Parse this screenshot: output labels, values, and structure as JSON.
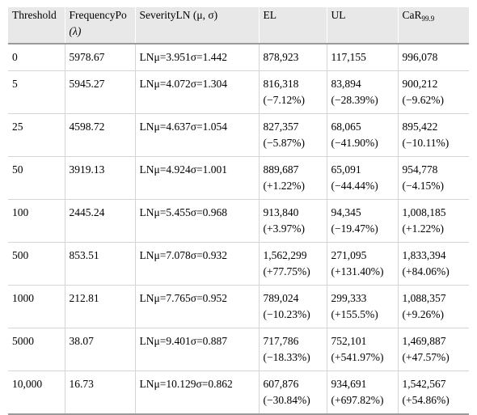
{
  "table": {
    "headers": {
      "threshold": "Threshold",
      "frequency_line1": "FrequencyPo",
      "frequency_line2": "(λ)",
      "severity": "SeverityLN (μ, σ)",
      "el": "EL",
      "ul": "UL",
      "car_main": "CaR",
      "car_sub": "99.9"
    },
    "rows": [
      {
        "threshold": "0",
        "frequency": "5978.67",
        "severity": "LNμ=3.951σ=1.442",
        "el": "878,923",
        "el_change": "",
        "ul": "117,155",
        "ul_change": "",
        "car": "996,078",
        "car_change": ""
      },
      {
        "threshold": "5",
        "frequency": "5945.27",
        "severity": "LNμ=4.072σ=1.304",
        "el": "816,318",
        "el_change": "(−7.12%)",
        "ul": "83,894",
        "ul_change": "(−28.39%)",
        "car": "900,212",
        "car_change": "(−9.62%)"
      },
      {
        "threshold": "25",
        "frequency": "4598.72",
        "severity": "LNμ=4.637σ=1.054",
        "el": "827,357",
        "el_change": "(−5.87%)",
        "ul": "68,065",
        "ul_change": "(−41.90%)",
        "car": "895,422",
        "car_change": "(−10.11%)"
      },
      {
        "threshold": "50",
        "frequency": "3919.13",
        "severity": "LNμ=4.924σ=1.001",
        "el": "889,687",
        "el_change": "(+1.22%)",
        "ul": "65,091",
        "ul_change": "(−44.44%)",
        "car": "954,778",
        "car_change": "(−4.15%)"
      },
      {
        "threshold": "100",
        "frequency": "2445.24",
        "severity": "LNμ=5.455σ=0.968",
        "el": "913,840",
        "el_change": "(+3.97%)",
        "ul": "94,345",
        "ul_change": "(−19.47%)",
        "car": "1,008,185",
        "car_change": "(+1.22%)"
      },
      {
        "threshold": "500",
        "frequency": "853.51",
        "severity": "LNμ=7.078σ=0.932",
        "el": "1,562,299",
        "el_change": "(+77.75%)",
        "ul": "271,095",
        "ul_change": "(+131.40%)",
        "car": "1,833,394",
        "car_change": "(+84.06%)"
      },
      {
        "threshold": "1000",
        "frequency": "212.81",
        "severity": "LNμ=7.765σ=0.952",
        "el": "789,024",
        "el_change": "(−10.23%)",
        "ul": "299,333",
        "ul_change": "(+155.5%)",
        "car": "1,088,357",
        "car_change": "(+9.26%)"
      },
      {
        "threshold": "5000",
        "frequency": "38.07",
        "severity": "LNμ=9.401σ=0.887",
        "el": "717,786",
        "el_change": "(−18.33%)",
        "ul": "752,101",
        "ul_change": "(+541.97%)",
        "car": "1,469,887",
        "car_change": "(+47.57%)"
      },
      {
        "threshold": "10,000",
        "frequency": "16.73",
        "severity": "LNμ=10.129σ=0.862",
        "el": "607,876",
        "el_change": "(−30.84%)",
        "ul": "934,691",
        "ul_change": "(+697.82%)",
        "car": "1,542,567",
        "car_change": "(+54.86%)"
      }
    ]
  }
}
